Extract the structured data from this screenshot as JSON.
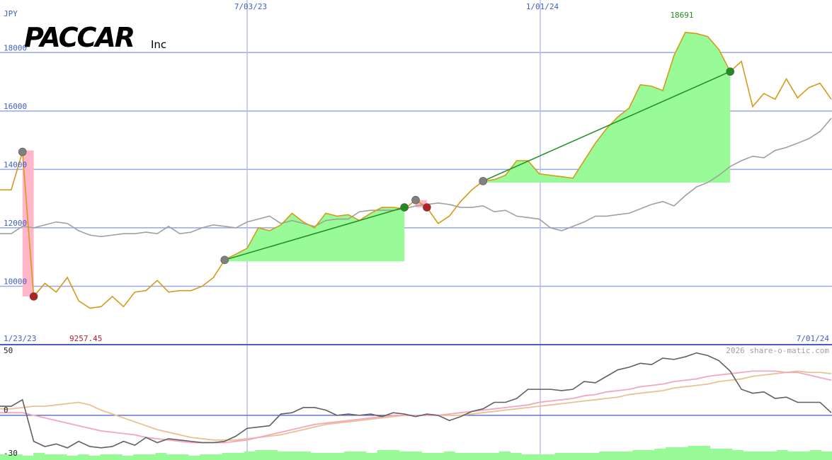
{
  "logo": {
    "brand": "PACCAR",
    "suffix": "Inc"
  },
  "chart_data": [
    {
      "type": "line",
      "currency": "JPY",
      "date_labels": {
        "top_1": "7/03/23",
        "top_2": "1/01/24",
        "bottom_start": "1/23/23",
        "bottom_end": "7/01/24"
      },
      "annotations": {
        "high": "18691",
        "low": "9257.45"
      },
      "yticks": [
        10000,
        12000,
        14000,
        16000,
        18000
      ],
      "ylim": [
        8000,
        19800
      ],
      "grid": true,
      "series": [
        {
          "color": "#d69a1a",
          "values": [
            13300,
            13300,
            14600,
            9650,
            10100,
            9800,
            10300,
            9500,
            9250,
            9300,
            9650,
            9300,
            9800,
            9850,
            10200,
            9800,
            9850,
            9850,
            10000,
            10300,
            10900,
            11100,
            11300,
            12000,
            11900,
            12100,
            12500,
            12200,
            12000,
            12500,
            12400,
            12450,
            12250,
            12500,
            12700,
            12700,
            12650,
            12950,
            12700,
            12150,
            12400,
            12900,
            13300,
            13600,
            13650,
            13800,
            14300,
            14300,
            13850,
            13800,
            13750,
            13700,
            14300,
            14900,
            15400,
            15800,
            16100,
            16900,
            16850,
            16700,
            17900,
            18691,
            18650,
            18550,
            18100,
            17350,
            17700,
            16150,
            16600,
            16400,
            17100,
            16450,
            16800,
            16950,
            16400
          ]
        },
        {
          "color": "#a0a0a0",
          "values": [
            11800,
            11800,
            12050,
            12000,
            12100,
            12200,
            12150,
            11900,
            11750,
            11700,
            11750,
            11800,
            11800,
            11850,
            11800,
            12050,
            11800,
            11850,
            12000,
            12100,
            12050,
            12000,
            12200,
            12300,
            12400,
            12150,
            12250,
            12150,
            12050,
            12250,
            12300,
            12300,
            12550,
            12600,
            12600,
            12600,
            12650,
            12750,
            12800,
            12850,
            12800,
            12700,
            12700,
            12750,
            12550,
            12600,
            12400,
            12350,
            12300,
            12000,
            11900,
            12050,
            12200,
            12400,
            12400,
            12450,
            12500,
            12650,
            12800,
            12900,
            12750,
            13100,
            13400,
            13550,
            13800,
            14100,
            14300,
            14450,
            14400,
            14650,
            14750,
            14900,
            15050,
            15300,
            15750
          ]
        }
      ],
      "markers": [
        {
          "x": 2,
          "y": 14600,
          "color": "#808080"
        },
        {
          "x": 3,
          "y": 9650,
          "color": "#b22222"
        },
        {
          "x": 20,
          "y": 10900,
          "color": "#808080"
        },
        {
          "x": 36,
          "y": 12700,
          "color": "#228b22"
        },
        {
          "x": 37,
          "y": 12950,
          "color": "#808080"
        },
        {
          "x": 38,
          "y": 12700,
          "color": "#b22222"
        },
        {
          "x": 43,
          "y": 13600,
          "color": "#808080"
        },
        {
          "x": 65,
          "y": 17350,
          "color": "#228b22"
        }
      ],
      "trend_lines": [
        {
          "x1": 20,
          "y1": 10900,
          "x2": 36,
          "y2": 12700,
          "color": "#228b22"
        },
        {
          "x1": 43,
          "y1": 13600,
          "x2": 65,
          "y2": 17350,
          "color": "#228b22"
        }
      ],
      "gain_areas": [
        {
          "start": 20,
          "end": 36,
          "base": 10850
        },
        {
          "start": 43,
          "end": 65,
          "base": 13550
        }
      ],
      "loss_bars": [
        {
          "x": 2,
          "from": 14650,
          "to": 9650
        },
        {
          "x": 37,
          "from": 12950,
          "to": 12700
        }
      ]
    },
    {
      "type": "line",
      "site": "2026 share-o-matic.com",
      "yticks": [
        50,
        0,
        -30
      ],
      "ylim": [
        -30,
        50
      ],
      "series": [
        {
          "color": "#606060",
          "values": [
            7,
            7,
            12,
            -20,
            -24,
            -22,
            -25,
            -20,
            -24,
            -25,
            -24,
            -20,
            -23,
            -17,
            -21,
            -18,
            -19,
            -20,
            -21,
            -21,
            -20,
            -16,
            -10,
            -9,
            -8,
            1,
            2,
            6,
            6,
            4,
            0,
            1,
            0,
            1,
            -1,
            2,
            1,
            -1,
            1,
            0,
            -4,
            -1,
            3,
            5,
            10,
            10,
            13,
            20,
            20,
            20,
            19,
            20,
            26,
            25,
            30,
            35,
            37,
            40,
            39,
            44,
            43,
            45,
            48,
            46,
            42,
            34,
            20,
            17,
            18,
            13,
            14,
            10,
            10,
            10,
            2
          ]
        },
        {
          "color": "#f4a6c0",
          "values": [
            2,
            2,
            2,
            0,
            -2,
            -4,
            -6,
            -8,
            -10,
            -12,
            -13,
            -14,
            -15,
            -17,
            -18,
            -19,
            -20,
            -21,
            -21,
            -21,
            -21,
            -20,
            -19,
            -17,
            -15,
            -13,
            -11,
            -9,
            -7,
            -6,
            -5,
            -4,
            -3,
            -2,
            -1,
            0,
            0,
            0,
            0,
            0,
            1,
            2,
            3,
            4,
            5,
            6,
            7,
            8,
            10,
            11,
            12,
            13,
            15,
            16,
            18,
            19,
            20,
            22,
            23,
            24,
            26,
            27,
            28,
            30,
            31,
            32,
            33,
            34,
            34,
            34,
            33,
            33,
            31,
            29,
            27
          ]
        },
        {
          "color": "#e8c290",
          "values": [
            5,
            5,
            6,
            7,
            7,
            8,
            9,
            10,
            8,
            4,
            1,
            -2,
            -5,
            -8,
            -11,
            -13,
            -15,
            -17,
            -18,
            -19,
            -19,
            -19,
            -18,
            -17,
            -16,
            -15,
            -13,
            -11,
            -9,
            -7,
            -6,
            -5,
            -4,
            -3,
            -2,
            -1,
            0,
            0,
            0,
            0,
            0,
            0,
            1,
            2,
            3,
            4,
            5,
            6,
            7,
            8,
            9,
            10,
            11,
            12,
            13,
            14,
            16,
            17,
            18,
            19,
            21,
            22,
            23,
            24,
            26,
            27,
            28,
            30,
            31,
            32,
            33,
            34,
            33,
            33,
            32
          ]
        }
      ],
      "volume": [
        4,
        4,
        3,
        5,
        4,
        4,
        3,
        4,
        3,
        4,
        4,
        3,
        4,
        4,
        5,
        4,
        4,
        3,
        4,
        4,
        5,
        5,
        6,
        7,
        7,
        6,
        6,
        6,
        5,
        5,
        5,
        6,
        6,
        5,
        7,
        7,
        6,
        6,
        5,
        5,
        6,
        5,
        5,
        5,
        5,
        6,
        5,
        4,
        4,
        4,
        5,
        5,
        5,
        5,
        6,
        6,
        6,
        7,
        7,
        8,
        9,
        9,
        10,
        10,
        8,
        8,
        7,
        6,
        6,
        6,
        7,
        6,
        6,
        7,
        6
      ]
    }
  ]
}
